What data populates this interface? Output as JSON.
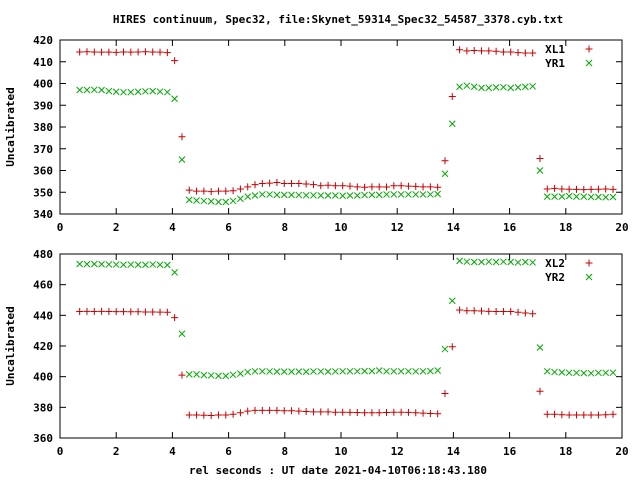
{
  "title": "HIRES continuum, Spec32, file:Skynet_59314_Spec32_54587_3378.cyb.txt",
  "xlabel": "rel seconds : UT date 2021-04-10T06:18:43.180",
  "colors": {
    "series_a": "#cc0000",
    "series_b": "#00aa00",
    "frame": "#000000"
  },
  "chart_data": [
    {
      "type": "scatter",
      "ylabel": "Uncalibrated",
      "xlim": [
        0,
        20
      ],
      "ylim": [
        340,
        420
      ],
      "xticks": [
        0,
        2,
        4,
        6,
        8,
        10,
        12,
        14,
        16,
        18,
        20
      ],
      "yticks": [
        340,
        350,
        360,
        370,
        380,
        390,
        400,
        410,
        420
      ],
      "legend_position": "top-right",
      "x": [
        0.7,
        0.96,
        1.22,
        1.48,
        1.74,
        2.0,
        2.26,
        2.52,
        2.78,
        3.04,
        3.3,
        3.56,
        3.82,
        4.08,
        4.34,
        4.6,
        4.86,
        5.12,
        5.38,
        5.64,
        5.9,
        6.16,
        6.42,
        6.68,
        6.94,
        7.2,
        7.46,
        7.72,
        7.98,
        8.24,
        8.5,
        8.76,
        9.02,
        9.28,
        9.54,
        9.8,
        10.06,
        10.32,
        10.58,
        10.84,
        11.1,
        11.36,
        11.62,
        11.88,
        12.14,
        12.4,
        12.66,
        12.92,
        13.18,
        13.44,
        13.7,
        13.96,
        14.22,
        14.48,
        14.74,
        15.0,
        15.26,
        15.52,
        15.78,
        16.04,
        16.3,
        16.56,
        16.82,
        17.08,
        17.34,
        17.6,
        17.86,
        18.12,
        18.38,
        18.64,
        18.9,
        19.16,
        19.42,
        19.68
      ],
      "series": [
        {
          "name": "XL1",
          "marker": "+",
          "values": [
            414.5,
            414.6,
            414.5,
            414.4,
            414.4,
            414.3,
            414.5,
            414.4,
            414.5,
            414.6,
            414.5,
            414.4,
            414.2,
            410.5,
            375.5,
            351.0,
            350.5,
            350.5,
            350.3,
            350.5,
            350.5,
            350.7,
            351.5,
            352.5,
            353.5,
            354.0,
            354.2,
            354.5,
            354.0,
            354.0,
            354.0,
            353.8,
            353.5,
            353.0,
            353.2,
            353.0,
            353.0,
            352.8,
            352.5,
            352.3,
            352.5,
            352.5,
            352.4,
            353.0,
            353.0,
            352.8,
            352.7,
            352.5,
            352.5,
            352.3,
            364.5,
            394.0,
            415.5,
            415.0,
            415.2,
            415.0,
            415.0,
            414.8,
            414.5,
            414.5,
            414.2,
            414.0,
            414.0,
            365.5,
            351.5,
            351.8,
            351.5,
            351.4,
            351.3,
            351.2,
            351.3,
            351.4,
            351.5,
            351.3
          ]
        },
        {
          "name": "YR1",
          "marker": "x",
          "values": [
            397.0,
            397.0,
            397.1,
            397.0,
            396.5,
            396.2,
            396.0,
            396.0,
            396.2,
            396.4,
            396.5,
            396.3,
            396.0,
            393.0,
            365.0,
            346.5,
            346.2,
            346.0,
            345.8,
            345.5,
            345.5,
            346.0,
            347.0,
            348.0,
            348.5,
            349.0,
            349.0,
            348.8,
            348.8,
            348.8,
            348.7,
            348.6,
            348.6,
            348.5,
            348.5,
            348.5,
            348.4,
            348.5,
            348.5,
            348.7,
            348.8,
            348.8,
            349.0,
            349.0,
            349.0,
            349.0,
            349.0,
            349.0,
            349.0,
            349.2,
            358.5,
            381.5,
            398.5,
            399.0,
            398.5,
            398.0,
            398.0,
            398.2,
            398.3,
            398.0,
            398.2,
            398.5,
            398.7,
            360.0,
            348.0,
            348.0,
            348.0,
            348.2,
            348.0,
            348.0,
            347.8,
            347.8,
            347.7,
            347.8
          ]
        }
      ]
    },
    {
      "type": "scatter",
      "ylabel": "Uncalibrated",
      "xlim": [
        0,
        20
      ],
      "ylim": [
        360,
        480
      ],
      "xticks": [
        0,
        2,
        4,
        6,
        8,
        10,
        12,
        14,
        16,
        18,
        20
      ],
      "yticks": [
        360,
        380,
        400,
        420,
        440,
        460,
        480
      ],
      "legend_position": "top-right",
      "x": [
        0.7,
        0.96,
        1.22,
        1.48,
        1.74,
        2.0,
        2.26,
        2.52,
        2.78,
        3.04,
        3.3,
        3.56,
        3.82,
        4.08,
        4.34,
        4.6,
        4.86,
        5.12,
        5.38,
        5.64,
        5.9,
        6.16,
        6.42,
        6.68,
        6.94,
        7.2,
        7.46,
        7.72,
        7.98,
        8.24,
        8.5,
        8.76,
        9.02,
        9.28,
        9.54,
        9.8,
        10.06,
        10.32,
        10.58,
        10.84,
        11.1,
        11.36,
        11.62,
        11.88,
        12.14,
        12.4,
        12.66,
        12.92,
        13.18,
        13.44,
        13.7,
        13.96,
        14.22,
        14.48,
        14.74,
        15.0,
        15.26,
        15.52,
        15.78,
        16.04,
        16.3,
        16.56,
        16.82,
        17.08,
        17.34,
        17.6,
        17.86,
        18.12,
        18.38,
        18.64,
        18.9,
        19.16,
        19.42,
        19.68
      ],
      "series": [
        {
          "name": "XL2",
          "marker": "+",
          "values": [
            442.5,
            442.6,
            442.5,
            442.6,
            442.5,
            442.4,
            442.4,
            442.3,
            442.3,
            442.2,
            442.2,
            442.1,
            442.0,
            438.5,
            401.0,
            375.0,
            375.0,
            374.8,
            374.7,
            375.0,
            375.0,
            375.5,
            376.5,
            377.5,
            378.0,
            378.0,
            378.0,
            378.0,
            377.8,
            377.8,
            377.5,
            377.3,
            377.0,
            377.0,
            377.0,
            376.8,
            376.8,
            376.7,
            376.6,
            376.5,
            376.5,
            376.5,
            376.6,
            376.8,
            376.8,
            376.7,
            376.5,
            376.2,
            376.0,
            375.8,
            389.0,
            419.5,
            443.5,
            443.0,
            443.0,
            442.8,
            442.6,
            442.5,
            442.5,
            442.5,
            442.0,
            441.5,
            441.0,
            390.5,
            375.5,
            375.5,
            375.2,
            375.0,
            375.0,
            375.0,
            375.0,
            375.0,
            375.2,
            375.5
          ]
        },
        {
          "name": "YR2",
          "marker": "x",
          "values": [
            473.5,
            473.4,
            473.5,
            473.3,
            473.2,
            473.1,
            473.0,
            473.1,
            473.0,
            473.0,
            473.2,
            473.0,
            472.8,
            468.0,
            428.0,
            401.5,
            401.5,
            401.0,
            400.8,
            400.5,
            400.5,
            401.2,
            402.0,
            403.0,
            403.5,
            403.5,
            403.4,
            403.3,
            403.3,
            403.3,
            403.3,
            403.2,
            403.4,
            403.4,
            403.3,
            403.4,
            403.5,
            403.5,
            403.5,
            403.6,
            403.6,
            404.0,
            403.5,
            403.5,
            403.5,
            403.5,
            403.4,
            403.5,
            403.6,
            404.0,
            418.0,
            449.5,
            475.5,
            475.0,
            474.8,
            474.8,
            475.0,
            474.8,
            475.0,
            474.8,
            474.5,
            474.8,
            474.5,
            419.0,
            403.5,
            403.0,
            402.8,
            402.5,
            402.5,
            402.3,
            402.2,
            402.5,
            402.5,
            402.6
          ]
        }
      ]
    }
  ]
}
